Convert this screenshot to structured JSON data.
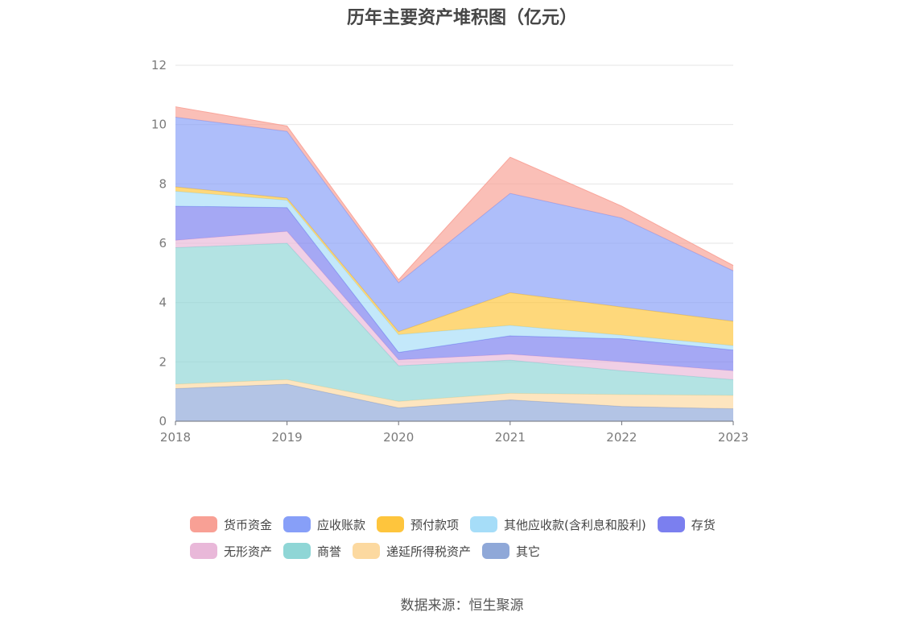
{
  "title": "历年主要资产堆积图（亿元）",
  "source": "数据来源：恒生聚源",
  "chart_data": {
    "type": "area",
    "stacked": true,
    "x": [
      "2018",
      "2019",
      "2020",
      "2021",
      "2022",
      "2023"
    ],
    "ylim": [
      0,
      12
    ],
    "yticks": [
      0,
      2,
      4,
      6,
      8,
      10,
      12
    ],
    "grid": true,
    "legend_position": "bottom",
    "series": [
      {
        "name": "其它",
        "color": "#8fa8d8",
        "values": [
          1.1,
          1.25,
          0.45,
          0.72,
          0.5,
          0.42
        ]
      },
      {
        "name": "递延所得税资产",
        "color": "#fcd9a0",
        "values": [
          0.15,
          0.15,
          0.22,
          0.22,
          0.4,
          0.45
        ]
      },
      {
        "name": "商誉",
        "color": "#8fd6d6",
        "values": [
          4.6,
          4.6,
          1.2,
          1.12,
          0.8,
          0.53
        ]
      },
      {
        "name": "无形资产",
        "color": "#e9b8d9",
        "values": [
          0.25,
          0.4,
          0.2,
          0.2,
          0.3,
          0.3
        ]
      },
      {
        "name": "存货",
        "color": "#7b7fef",
        "values": [
          1.15,
          0.8,
          0.25,
          0.62,
          0.78,
          0.7
        ]
      },
      {
        "name": "其他应收款(含利息和股利)",
        "color": "#a6ddf8",
        "values": [
          0.5,
          0.25,
          0.6,
          0.35,
          0.12,
          0.15
        ]
      },
      {
        "name": "预付款项",
        "color": "#fec53d",
        "values": [
          0.15,
          0.07,
          0.1,
          1.1,
          0.95,
          0.82
        ]
      },
      {
        "name": "应收账款",
        "color": "#879ff8",
        "values": [
          2.35,
          2.25,
          1.65,
          3.35,
          3.0,
          1.7
        ]
      },
      {
        "name": "货币资金",
        "color": "#f8a095",
        "values": [
          0.35,
          0.18,
          0.1,
          1.22,
          0.4,
          0.18
        ]
      }
    ]
  },
  "legend": {
    "row1": [
      {
        "name": "货币资金",
        "color": "#f8a095"
      },
      {
        "name": "应收账款",
        "color": "#879ff8"
      },
      {
        "name": "预付款项",
        "color": "#fec53d"
      },
      {
        "name": "其他应收款(含利息和股利)",
        "color": "#a6ddf8"
      },
      {
        "name": "存货",
        "color": "#7b7fef"
      }
    ],
    "row2": [
      {
        "name": "无形资产",
        "color": "#e9b8d9"
      },
      {
        "name": "商誉",
        "color": "#8fd6d6"
      },
      {
        "name": "递延所得税资产",
        "color": "#fcd9a0"
      },
      {
        "name": "其它",
        "color": "#8fa8d8"
      }
    ]
  }
}
